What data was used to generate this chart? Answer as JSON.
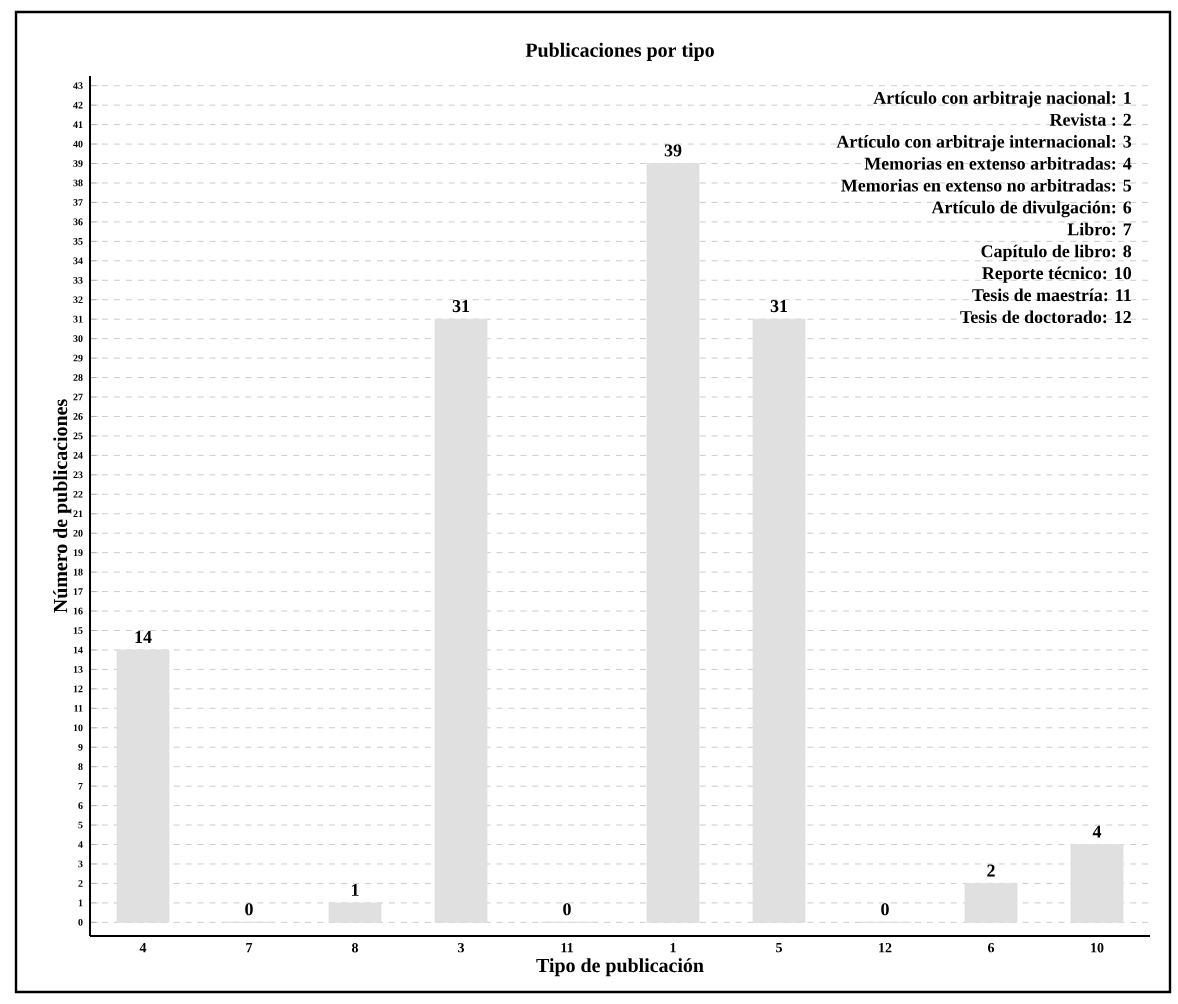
{
  "chart_data": {
    "type": "bar",
    "title": "Publicaciones por tipo",
    "xlabel": "Tipo de publicación",
    "ylabel": "Número de publicaciones",
    "categories": [
      "4",
      "7",
      "8",
      "3",
      "11",
      "1",
      "5",
      "12",
      "6",
      "10"
    ],
    "values": [
      14,
      0,
      1,
      31,
      0,
      39,
      31,
      0,
      2,
      4
    ],
    "color": "#e0e0e0",
    "data_labels": true,
    "grid": "y",
    "ylim": [
      -0.7,
      43.5
    ],
    "yticks": [
      0,
      1,
      2,
      3,
      4,
      5,
      6,
      7,
      8,
      9,
      10,
      11,
      12,
      13,
      14,
      15,
      16,
      17,
      18,
      19,
      20,
      21,
      22,
      23,
      24,
      25,
      26,
      27,
      28,
      29,
      30,
      31,
      32,
      33,
      34,
      35,
      36,
      37,
      38,
      39,
      40,
      41,
      42,
      43
    ],
    "annotations": [
      "Artículo con arbitraje nacional: 1",
      "Revista : 2",
      "Artículo con arbitraje internacional: 3",
      "Memorias en extenso arbitradas: 4",
      "Memorias en extenso no arbitradas: 5",
      "Artículo de divulgación: 6",
      "Libro: 7",
      "Capítulo de libro: 8",
      "Reporte técnico: 10",
      "Tesis de maestría: 11",
      "Tesis de doctorado: 12"
    ]
  }
}
